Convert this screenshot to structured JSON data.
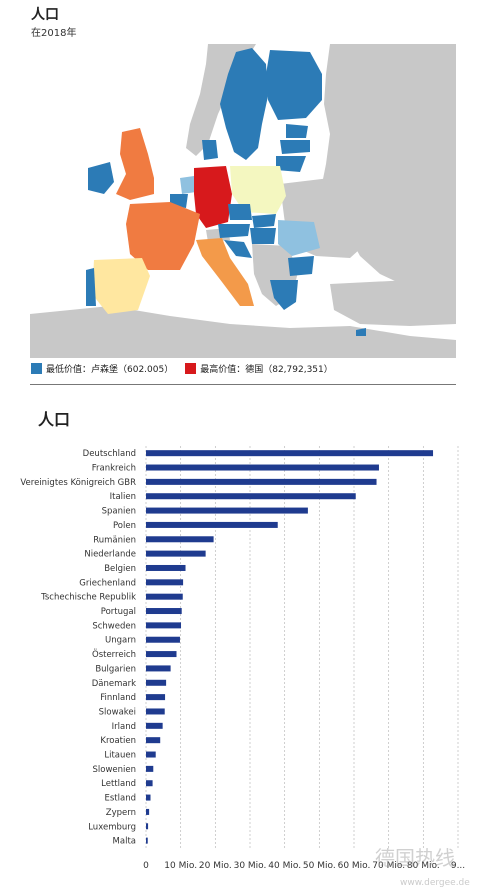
{
  "map": {
    "title": "人口",
    "subtitle": "在2018年",
    "legend": {
      "min_label": "最低价值：卢森堡（602.005）",
      "max_label": "最高价值：德国（82,792,351）",
      "min_color": "#2c7bb6",
      "max_color": "#d7191c"
    },
    "colors": {
      "sea": "#ffffff",
      "land_other": "#c8c8c8",
      "dark_blue": "#2c7bb6",
      "light_blue": "#8fc1e0",
      "pale_yellow": "#ffe7a0",
      "light_yellow": "#f4f7c0",
      "orange": "#f39a4a",
      "dark_orange": "#f07b41",
      "red": "#d7191c"
    }
  },
  "chart_title": "人口",
  "watermark": {
    "main": "德国热线",
    "sub": "www.dergee.de"
  },
  "chart_data": {
    "type": "bar",
    "orientation": "horizontal",
    "color": "#1f3b8f",
    "categories": [
      "Deutschland",
      "Frankreich",
      "Vereinigtes Königreich GBR",
      "Italien",
      "Spanien",
      "Polen",
      "Rumänien",
      "Niederlande",
      "Belgien",
      "Griechenland",
      "Tschechische Republik",
      "Portugal",
      "Schweden",
      "Ungarn",
      "Österreich",
      "Bulgarien",
      "Dänemark",
      "Finnland",
      "Slowakei",
      "Irland",
      "Kroatien",
      "Litauen",
      "Slowenien",
      "Lettland",
      "Estland",
      "Zypern",
      "Luxemburg",
      "Malta"
    ],
    "values": [
      82.8,
      67.2,
      66.5,
      60.5,
      46.7,
      38.0,
      19.5,
      17.2,
      11.4,
      10.7,
      10.6,
      10.3,
      10.1,
      9.8,
      8.8,
      7.1,
      5.8,
      5.5,
      5.4,
      4.8,
      4.1,
      2.8,
      2.1,
      1.9,
      1.3,
      0.9,
      0.6,
      0.5
    ],
    "xticks": [
      "0",
      "10 Mio.",
      "20 Mio.",
      "30 Mio.",
      "40 Mio.",
      "50 Mio.",
      "60 Mio.",
      "70 Mio.",
      "80 Mio.",
      "9..."
    ],
    "xlim": [
      0,
      90
    ],
    "grid": true
  }
}
